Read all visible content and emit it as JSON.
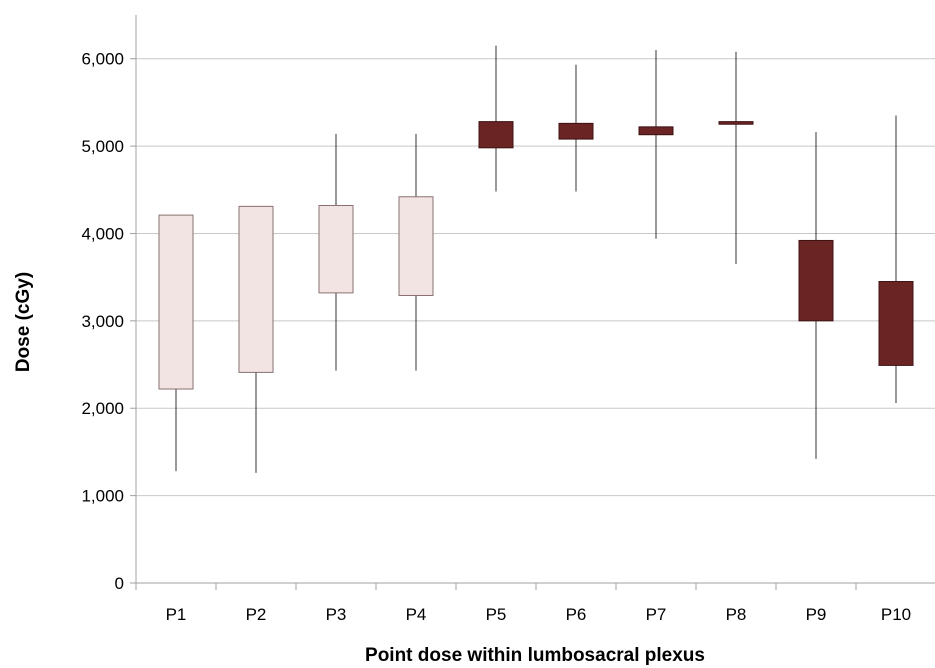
{
  "chart_data": {
    "type": "boxplot",
    "title": "",
    "xlabel": "Point dose within lumbosacral plexus",
    "ylabel": "Dose (cGy)",
    "ylim": [
      0,
      6500
    ],
    "yticks": [
      0,
      1000,
      2000,
      3000,
      4000,
      5000,
      6000
    ],
    "ytick_labels": [
      "0",
      "1,000",
      "2,000",
      "3,000",
      "4,000",
      "5,000",
      "6,000"
    ],
    "grid": true,
    "legend": "none",
    "categories": [
      "P1",
      "P2",
      "P3",
      "P4",
      "P5",
      "P6",
      "P7",
      "P8",
      "P9",
      "P10"
    ],
    "colors": {
      "light": "#f3e4e4",
      "dark": "#6b2424",
      "grid": "#c8c8c8",
      "axis": "#a0a0a0",
      "whisker": "#000000"
    },
    "boxes": [
      {
        "category": "P1",
        "min": 1280,
        "q1": 2220,
        "q3": 4210,
        "max": 4210,
        "fill": "light"
      },
      {
        "category": "P2",
        "min": 1260,
        "q1": 2410,
        "q3": 4310,
        "max": 4310,
        "fill": "light"
      },
      {
        "category": "P3",
        "min": 2430,
        "q1": 3320,
        "q3": 4320,
        "max": 5140,
        "fill": "light"
      },
      {
        "category": "P4",
        "min": 2430,
        "q1": 3290,
        "q3": 4420,
        "max": 5140,
        "fill": "light"
      },
      {
        "category": "P5",
        "min": 4480,
        "q1": 4980,
        "q3": 5280,
        "max": 6150,
        "fill": "dark"
      },
      {
        "category": "P6",
        "min": 4480,
        "q1": 5080,
        "q3": 5260,
        "max": 5930,
        "fill": "dark"
      },
      {
        "category": "P7",
        "min": 3940,
        "q1": 5130,
        "q3": 5220,
        "max": 6100,
        "fill": "dark"
      },
      {
        "category": "P8",
        "min": 3650,
        "q1": 5250,
        "q3": 5280,
        "max": 6080,
        "fill": "dark"
      },
      {
        "category": "P9",
        "min": 1420,
        "q1": 3000,
        "q3": 3920,
        "max": 5160,
        "fill": "dark"
      },
      {
        "category": "P10",
        "min": 2060,
        "q1": 2490,
        "q3": 3450,
        "max": 5350,
        "fill": "dark"
      }
    ]
  }
}
